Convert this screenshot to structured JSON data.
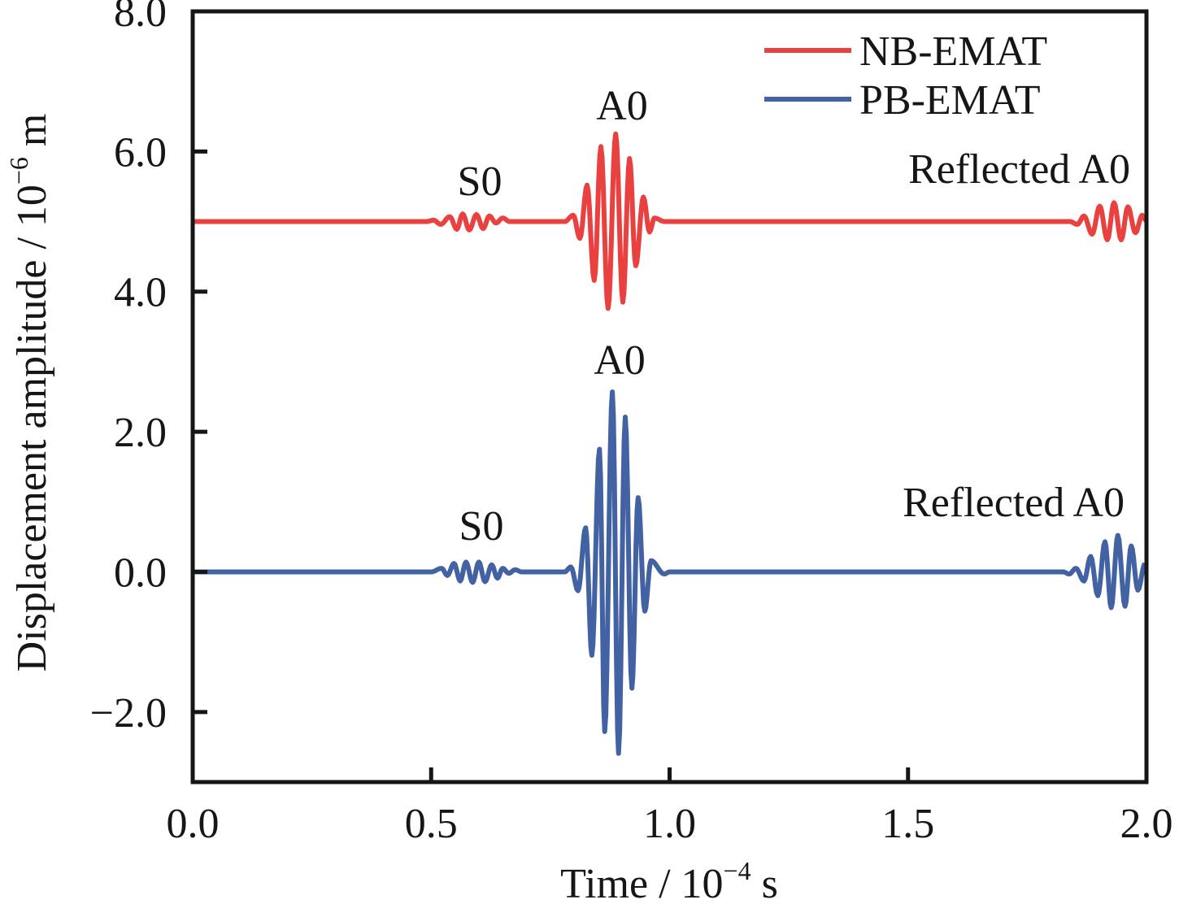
{
  "chart_data": {
    "type": "line",
    "title": "",
    "xlabel": {
      "main": "Time / 10",
      "sup": "−4",
      "unit": " s"
    },
    "ylabel": {
      "main": "Displacement amplitude / 10",
      "sup": "−6",
      "unit": " m"
    },
    "xlim": [
      0,
      2.0
    ],
    "ylim": [
      -3.0,
      8.0
    ],
    "xticks": [
      0,
      0.5,
      1.0,
      1.5,
      2.0
    ],
    "xtick_labels": [
      "0.0",
      "0.5",
      "1.0",
      "1.5",
      "2.0"
    ],
    "yticks": [
      -2,
      0,
      2,
      4,
      6,
      8
    ],
    "ytick_labels": [
      "−2.0",
      "0.0",
      "2.0",
      "4.0",
      "6.0",
      "8.0"
    ],
    "grid": false,
    "legend_position": "top-right",
    "series": [
      {
        "name": "NB-EMAT",
        "color": "#e8413f",
        "points": [
          [
            0,
            5.0
          ],
          [
            0.49,
            5.0
          ],
          [
            0.505,
            5.02
          ],
          [
            0.52,
            4.96
          ],
          [
            0.539,
            5.07
          ],
          [
            0.554,
            4.89
          ],
          [
            0.566,
            5.11
          ],
          [
            0.58,
            4.88
          ],
          [
            0.595,
            5.1
          ],
          [
            0.609,
            4.9
          ],
          [
            0.622,
            5.08
          ],
          [
            0.636,
            4.98
          ],
          [
            0.65,
            5.05
          ],
          [
            0.665,
            5.0
          ],
          [
            0.78,
            5.0
          ],
          [
            0.798,
            5.09
          ],
          [
            0.812,
            4.76
          ],
          [
            0.827,
            5.52
          ],
          [
            0.842,
            4.16
          ],
          [
            0.856,
            6.07
          ],
          [
            0.871,
            3.76
          ],
          [
            0.887,
            6.25
          ],
          [
            0.902,
            3.85
          ],
          [
            0.916,
            5.9
          ],
          [
            0.929,
            4.37
          ],
          [
            0.945,
            5.35
          ],
          [
            0.958,
            4.85
          ],
          [
            0.968,
            5.05
          ],
          [
            0.99,
            5.0
          ],
          [
            1.84,
            5.0
          ],
          [
            1.855,
            4.96
          ],
          [
            1.869,
            5.08
          ],
          [
            1.886,
            4.82
          ],
          [
            1.902,
            5.22
          ],
          [
            1.918,
            4.74
          ],
          [
            1.932,
            5.27
          ],
          [
            1.947,
            4.74
          ],
          [
            1.961,
            5.21
          ],
          [
            1.977,
            4.84
          ],
          [
            1.991,
            5.09
          ],
          [
            2.0,
            5.01
          ]
        ]
      },
      {
        "name": "PB-EMAT",
        "color": "#4262a3",
        "points": [
          [
            0,
            0.0
          ],
          [
            0.5,
            0.0
          ],
          [
            0.522,
            0.05
          ],
          [
            0.534,
            -0.05
          ],
          [
            0.548,
            0.12
          ],
          [
            0.561,
            -0.13
          ],
          [
            0.573,
            0.14
          ],
          [
            0.587,
            -0.15
          ],
          [
            0.6,
            0.14
          ],
          [
            0.613,
            -0.14
          ],
          [
            0.627,
            0.1
          ],
          [
            0.639,
            -0.09
          ],
          [
            0.65,
            0.05
          ],
          [
            0.663,
            -0.02
          ],
          [
            0.676,
            0.03
          ],
          [
            0.69,
            0.0
          ],
          [
            0.78,
            0.0
          ],
          [
            0.793,
            0.07
          ],
          [
            0.808,
            -0.27
          ],
          [
            0.824,
            0.63
          ],
          [
            0.837,
            -1.19
          ],
          [
            0.853,
            1.75
          ],
          [
            0.864,
            -2.28
          ],
          [
            0.88,
            2.57
          ],
          [
            0.893,
            -2.59
          ],
          [
            0.907,
            2.21
          ],
          [
            0.921,
            -1.66
          ],
          [
            0.934,
            1.06
          ],
          [
            0.948,
            -0.56
          ],
          [
            0.961,
            0.16
          ],
          [
            0.989,
            -0.03
          ],
          [
            1.0,
            0.0
          ],
          [
            1.825,
            0.0
          ],
          [
            1.838,
            -0.03
          ],
          [
            1.852,
            0.05
          ],
          [
            1.869,
            -0.13
          ],
          [
            1.883,
            0.22
          ],
          [
            1.898,
            -0.34
          ],
          [
            1.913,
            0.43
          ],
          [
            1.926,
            -0.51
          ],
          [
            1.94,
            0.52
          ],
          [
            1.955,
            -0.49
          ],
          [
            1.968,
            0.37
          ],
          [
            1.982,
            -0.26
          ],
          [
            1.997,
            0.12
          ]
        ]
      }
    ],
    "annotations": [
      {
        "text": "S0",
        "series": "NB-EMAT"
      },
      {
        "text": "A0",
        "series": "NB-EMAT"
      },
      {
        "text": "Reflected A0",
        "series": "NB-EMAT"
      },
      {
        "text": "S0",
        "series": "PB-EMAT"
      },
      {
        "text": "A0",
        "series": "PB-EMAT"
      },
      {
        "text": "Reflected A0",
        "series": "PB-EMAT"
      }
    ]
  }
}
